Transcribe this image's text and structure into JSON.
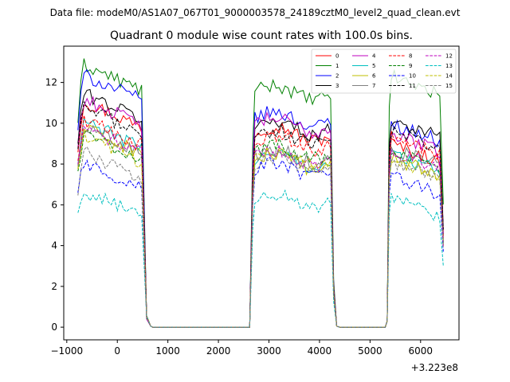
{
  "chart_data": {
    "type": "line",
    "suptitle": "Data file: modeM0/AS1A07_067T01_9000003578_24189cztM0_level2_quad_clean.evt",
    "title": "Quadrant 0 module wise count rates with 100.0s bins.",
    "xlabel": "",
    "ylabel": "",
    "x_offset_label": "+3.223e8",
    "xlim": [
      -1060,
      6760
    ],
    "ylim": [
      -0.62,
      13.78
    ],
    "xticks": [
      -1000,
      0,
      1000,
      2000,
      3000,
      4000,
      5000,
      6000
    ],
    "xtick_labels": [
      "−1000",
      "0",
      "1000",
      "2000",
      "3000",
      "4000",
      "5000",
      "6000"
    ],
    "yticks": [
      0,
      2,
      4,
      6,
      8,
      10,
      12
    ],
    "ytick_labels": [
      "0",
      "2",
      "4",
      "6",
      "8",
      "10",
      "12"
    ],
    "grid": false,
    "legend_position": "top-right",
    "legend_columns": 4,
    "time_segments": [
      {
        "start": -780,
        "end": 520
      },
      {
        "start": 2720,
        "end": 4220
      },
      {
        "start": 5420,
        "end": 6420
      }
    ],
    "drop_times": [
      580,
      660
    ],
    "zero_range": [
      700,
      2620
    ],
    "edge_times": {
      "seg1": [
        2620,
        2680
      ],
      "seg2": [
        4280,
        4340
      ],
      "seg3": [
        5340,
        5380
      ],
      "tail": 6450
    },
    "series": [
      {
        "name": "0",
        "color": "#ff0000",
        "dash": "solid",
        "levels": [
          11.2,
          9.5,
          9.0
        ]
      },
      {
        "name": "1",
        "color": "#008000",
        "dash": "solid",
        "levels": [
          13.0,
          11.5,
          12.3
        ]
      },
      {
        "name": "2",
        "color": "#0000ff",
        "dash": "solid",
        "levels": [
          12.5,
          10.2,
          10.0
        ]
      },
      {
        "name": "3",
        "color": "#000000",
        "dash": "solid",
        "levels": [
          11.6,
          9.8,
          10.2
        ]
      },
      {
        "name": "4",
        "color": "#bf00bf",
        "dash": "solid",
        "levels": [
          11.3,
          9.9,
          9.5
        ]
      },
      {
        "name": "5",
        "color": "#00bfbf",
        "dash": "solid",
        "levels": [
          10.2,
          8.2,
          8.5
        ]
      },
      {
        "name": "6",
        "color": "#bfbf00",
        "dash": "solid",
        "levels": [
          9.9,
          8.1,
          8.3
        ]
      },
      {
        "name": "7",
        "color": "#808080",
        "dash": "solid",
        "levels": [
          10.0,
          8.4,
          8.8
        ]
      },
      {
        "name": "8",
        "color": "#ff0000",
        "dash": "dash",
        "levels": [
          10.3,
          9.0,
          9.3
        ]
      },
      {
        "name": "9",
        "color": "#008000",
        "dash": "dash",
        "levels": [
          9.6,
          8.6,
          8.6
        ]
      },
      {
        "name": "10",
        "color": "#0000ff",
        "dash": "dash",
        "levels": [
          8.2,
          7.7,
          7.4
        ]
      },
      {
        "name": "11",
        "color": "#000000",
        "dash": "dash",
        "levels": [
          10.9,
          9.3,
          9.6
        ]
      },
      {
        "name": "12",
        "color": "#bf00bf",
        "dash": "dash",
        "levels": [
          9.9,
          8.3,
          8.7
        ]
      },
      {
        "name": "13",
        "color": "#00bfbf",
        "dash": "dash",
        "levels": [
          6.8,
          6.2,
          6.3
        ]
      },
      {
        "name": "14",
        "color": "#bfbf00",
        "dash": "dash",
        "levels": [
          9.5,
          8.3,
          8.2
        ]
      },
      {
        "name": "15",
        "color": "#808080",
        "dash": "dash",
        "levels": [
          8.7,
          8.0,
          8.1
        ]
      }
    ]
  }
}
